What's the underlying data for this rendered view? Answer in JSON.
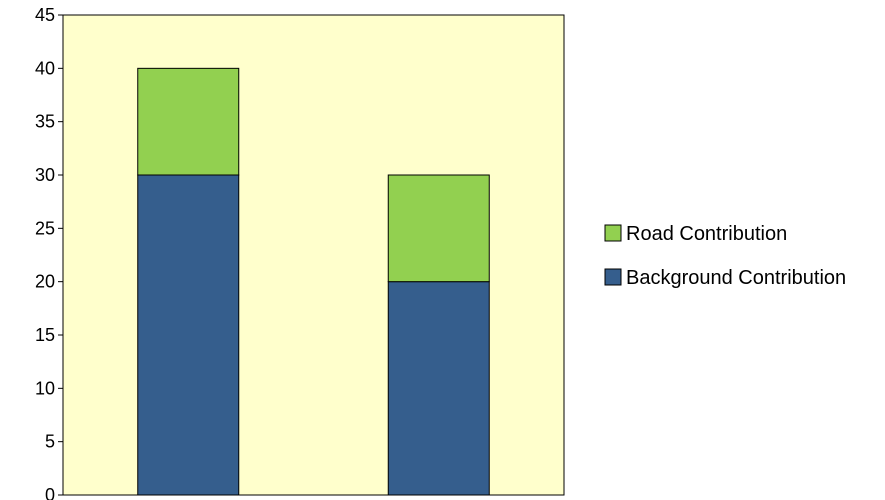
{
  "chart_data": {
    "type": "bar",
    "stacked": true,
    "categories": [
      "",
      ""
    ],
    "series": [
      {
        "name": "Background Contribution",
        "values": [
          30,
          20
        ],
        "color": "#355E8D"
      },
      {
        "name": "Road Contribution",
        "values": [
          10,
          10
        ],
        "color": "#92D050"
      }
    ],
    "title": "",
    "xlabel": "",
    "ylabel": "",
    "ylim": [
      0,
      45
    ],
    "yticks": [
      0,
      5,
      10,
      15,
      20,
      25,
      30,
      35,
      40,
      45
    ],
    "grid": false,
    "legend_position": "right",
    "legend_order": [
      "Road Contribution",
      "Background Contribution"
    ],
    "plot_background": "#FFFFCC"
  }
}
